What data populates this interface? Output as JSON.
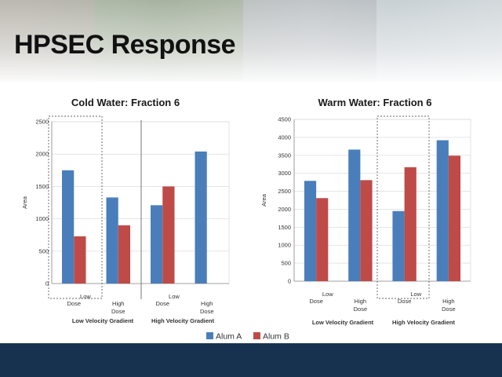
{
  "slide": {
    "title": "HPSEC Response"
  },
  "colors": {
    "alum_a": "#4a7ebb",
    "alum_b": "#be4b48",
    "footer": "#17324f"
  },
  "legend": {
    "items": [
      {
        "label": "Alum A",
        "color": "#4a7ebb"
      },
      {
        "label": "Alum B",
        "color": "#be4b48"
      }
    ]
  },
  "chart_data": [
    {
      "type": "bar",
      "title": "Cold Water: Fraction 6",
      "ylabel": "Area",
      "ylim": [
        0,
        2500
      ],
      "yticks": [
        0,
        500,
        1000,
        1500,
        2000,
        2500
      ],
      "categories": [
        {
          "lines": [
            "Low",
            "Dose"
          ]
        },
        {
          "lines": [
            "High",
            "Dose"
          ]
        },
        {
          "lines": [
            "Low",
            "Dose"
          ]
        },
        {
          "lines": [
            "High",
            "Dose"
          ]
        }
      ],
      "group_labels": [
        "Low Velocity Gradient",
        "High Velocity Gradient"
      ],
      "series": [
        {
          "name": "Alum A",
          "values": [
            1750,
            1330,
            1210,
            2040
          ]
        },
        {
          "name": "Alum B",
          "values": [
            730,
            900,
            1500,
            null
          ]
        }
      ]
    },
    {
      "type": "bar",
      "title": "Warm Water: Fraction 6",
      "ylabel": "Area",
      "ylim": [
        0,
        4500
      ],
      "yticks": [
        0,
        500,
        1000,
        1500,
        2000,
        2500,
        3000,
        3500,
        4000,
        4500
      ],
      "categories": [
        {
          "lines": [
            "Low",
            "Dose"
          ]
        },
        {
          "lines": [
            "High",
            "Dose"
          ]
        },
        {
          "lines": [
            "Low",
            "Dose"
          ]
        },
        {
          "lines": [
            "High",
            "Dose"
          ]
        }
      ],
      "group_labels": [
        "Low Velocity Gradient",
        "High Velocity Gradient"
      ],
      "series": [
        {
          "name": "Alum A",
          "values": [
            2790,
            3660,
            1950,
            3920
          ]
        },
        {
          "name": "Alum B",
          "values": [
            2310,
            2810,
            3170,
            3490
          ]
        }
      ]
    }
  ]
}
